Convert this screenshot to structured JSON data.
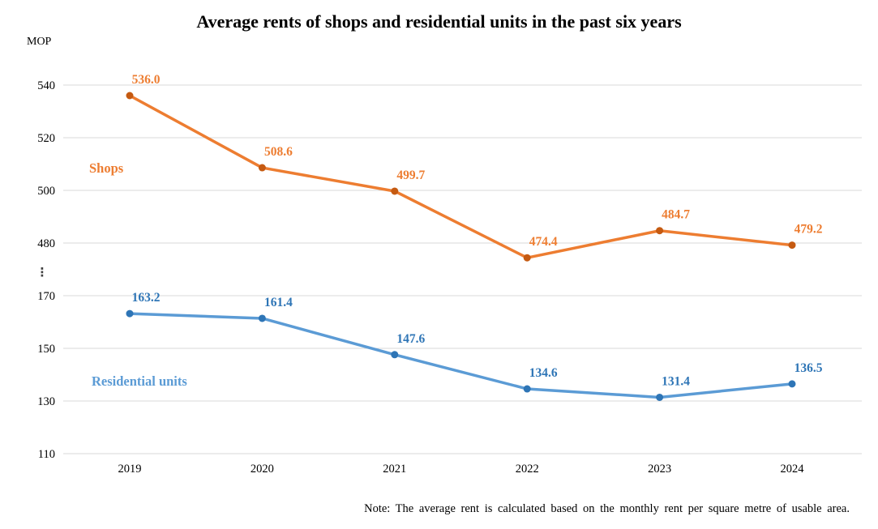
{
  "title": "Average rents of shops and residential units in the past six years",
  "unit_label": "MOP",
  "note": "Note: The average rent is calculated  based on the monthly  rent per square metre of usable area.",
  "chart_data": {
    "type": "line",
    "categories": [
      "2019",
      "2020",
      "2021",
      "2022",
      "2023",
      "2024"
    ],
    "series": [
      {
        "name": "Shops",
        "values": [
          536.0,
          508.6,
          499.7,
          474.4,
          484.7,
          479.2
        ],
        "axis_section": "top",
        "line_color": "#ED7D31",
        "marker_color": "#C55A11",
        "label_color": "#ED7D31",
        "name_color": "#ED7D31"
      },
      {
        "name": "Residential units",
        "values": [
          163.2,
          161.4,
          147.6,
          134.6,
          131.4,
          136.5
        ],
        "axis_section": "bottom",
        "line_color": "#5B9BD5",
        "marker_color": "#2E75B6",
        "label_color": "#2E75B6",
        "name_color": "#5B9BD5"
      }
    ],
    "y_axis": {
      "unit": "MOP",
      "broken_axis": true,
      "sections": [
        {
          "ticks": [
            540,
            520,
            500,
            480
          ]
        },
        {
          "ticks": [
            170,
            150,
            130,
            110
          ]
        }
      ],
      "break_symbol": "⋮"
    },
    "xlabel": "",
    "ylabel": "MOP",
    "grid": true,
    "data_labels": true,
    "legend_position": "inline-labels"
  },
  "colors": {
    "grid": "#D9D9D9",
    "axis_text": "#000000",
    "break_symbol": "#404040",
    "background": "#FFFFFF"
  }
}
